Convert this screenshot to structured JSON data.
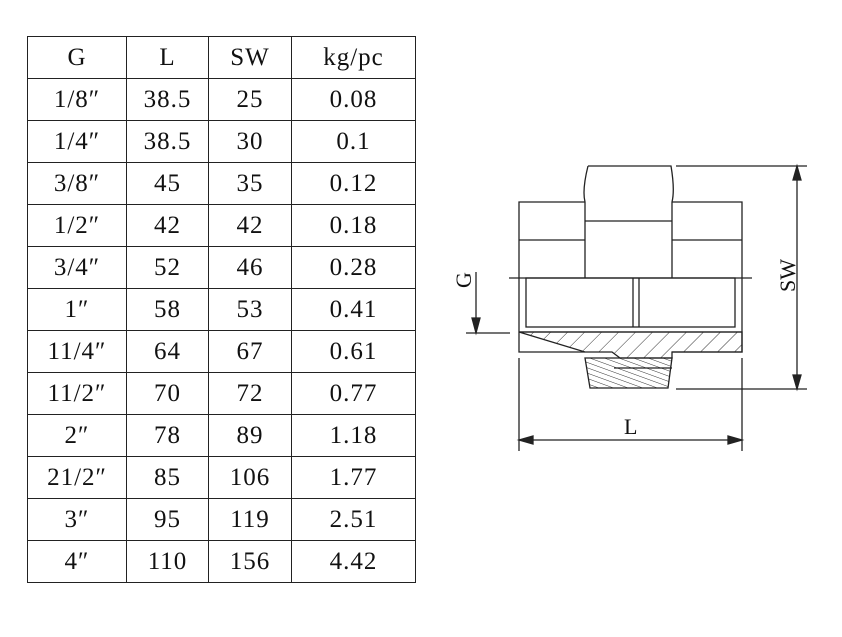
{
  "table": {
    "headers": [
      "G",
      "L",
      "SW",
      "kg/pc"
    ],
    "rows": [
      [
        "1/8″",
        "38.5",
        "25",
        "0.08"
      ],
      [
        "1/4″",
        "38.5",
        "30",
        "0.1"
      ],
      [
        "3/8″",
        "45",
        "35",
        "0.12"
      ],
      [
        "1/2″",
        "42",
        "42",
        "0.18"
      ],
      [
        "3/4″",
        "52",
        "46",
        "0.28"
      ],
      [
        "1″",
        "58",
        "53",
        "0.41"
      ],
      [
        "11/4″",
        "64",
        "67",
        "0.61"
      ],
      [
        "11/2″",
        "70",
        "72",
        "0.77"
      ],
      [
        "2″",
        "78",
        "89",
        "1.18"
      ],
      [
        "21/2″",
        "85",
        "106",
        "1.77"
      ],
      [
        "3″",
        "95",
        "119",
        "2.51"
      ],
      [
        "4″",
        "110",
        "156",
        "4.42"
      ]
    ]
  },
  "drawing": {
    "label_g": "G",
    "label_l": "L",
    "label_sw": "SW"
  }
}
